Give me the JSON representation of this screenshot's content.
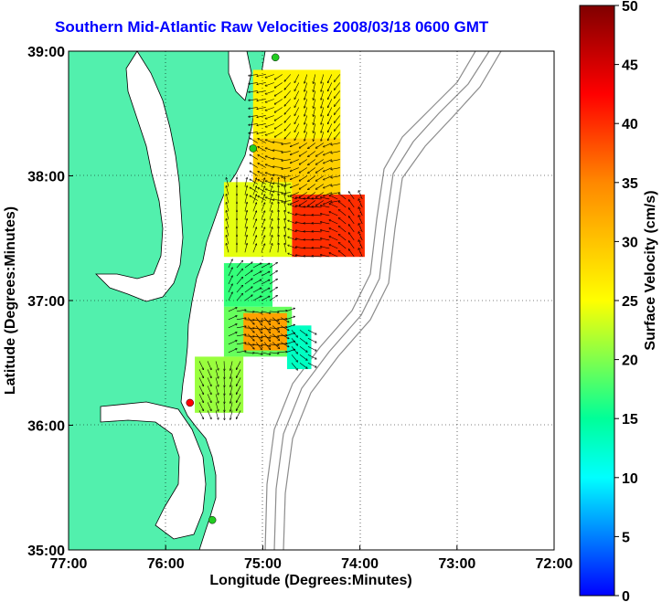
{
  "title": "Southern Mid-Atlantic Raw Velocities 2008/03/18 0600 GMT",
  "x_label": "Longitude (Degrees:Minutes)",
  "y_label": "Latitude (Degrees:Minutes)",
  "x_ticks": [
    "77:00",
    "76:00",
    "75:00",
    "74:00",
    "73:00",
    "72:00"
  ],
  "y_ticks": [
    "39:00",
    "38:00",
    "37:00",
    "36:00",
    "35:00"
  ],
  "colorbar": {
    "label": "Surface Velocity (cm/s)",
    "ticks": [
      "50",
      "45",
      "40",
      "35",
      "30",
      "25",
      "20",
      "15",
      "10",
      "5",
      "0"
    ],
    "min": 0,
    "max": 50
  },
  "colors": {
    "land": "#52f0ad",
    "water": "#ffffff",
    "coast": "#000000",
    "bathymetry": "#8c8c8c",
    "title": "#0000ff",
    "station_active": "#22cc22",
    "station_flag": "#ff0000"
  },
  "chart_data": {
    "type": "heatmap",
    "title": "Southern Mid-Atlantic Raw Velocities 2008/03/18 0600 GMT",
    "xlabel": "Longitude (Degrees:Minutes)",
    "ylabel": "Latitude (Degrees:Minutes)",
    "xlim": [
      -77,
      -72
    ],
    "ylim": [
      35,
      39
    ],
    "colorbar_label": "Surface Velocity (cm/s)",
    "colorbar_range": [
      0,
      50
    ],
    "stations": [
      {
        "lon": -74.87,
        "lat": 38.95,
        "status": "green"
      },
      {
        "lon": -75.1,
        "lat": 38.22,
        "status": "green"
      },
      {
        "lon": -75.75,
        "lat": 36.18,
        "status": "red"
      },
      {
        "lon": -75.52,
        "lat": 35.24,
        "status": "green"
      }
    ],
    "velocity_regions": [
      {
        "lon_min": -75.1,
        "lon_max": -74.2,
        "lat_min": 38.3,
        "lat_max": 38.85,
        "speed": 26
      },
      {
        "lon_min": -75.1,
        "lon_max": -74.2,
        "lat_min": 37.8,
        "lat_max": 38.3,
        "speed": 29
      },
      {
        "lon_min": -74.7,
        "lon_max": -73.95,
        "lat_min": 37.35,
        "lat_max": 37.85,
        "speed": 40
      },
      {
        "lon_min": -75.4,
        "lon_max": -74.7,
        "lat_min": 37.35,
        "lat_max": 37.95,
        "speed": 24
      },
      {
        "lon_min": -75.4,
        "lon_max": -74.9,
        "lat_min": 36.95,
        "lat_max": 37.3,
        "speed": 17
      },
      {
        "lon_min": -75.4,
        "lon_max": -74.7,
        "lat_min": 36.55,
        "lat_max": 36.95,
        "speed": 19
      },
      {
        "lon_min": -75.2,
        "lon_max": -74.75,
        "lat_min": 36.6,
        "lat_max": 36.9,
        "speed": 33
      },
      {
        "lon_min": -74.75,
        "lon_max": -74.5,
        "lat_min": 36.45,
        "lat_max": 36.8,
        "speed": 13
      },
      {
        "lon_min": -75.7,
        "lon_max": -75.2,
        "lat_min": 36.1,
        "lat_max": 36.55,
        "speed": 21
      }
    ]
  }
}
